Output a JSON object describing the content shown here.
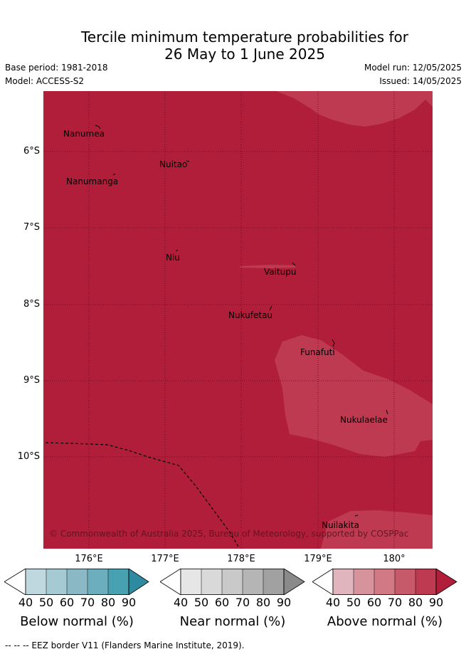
{
  "title": {
    "line1": "Tercile minimum temperature probabilities for",
    "line2": "26 May to 1 June 2025"
  },
  "meta": {
    "base_period": "Base period: 1981-2018",
    "model": "Model: ACCESS-S2",
    "model_run": "Model run: 12/05/2025",
    "issued": "Issued: 14/05/2025"
  },
  "map": {
    "lat_labels": [
      "6°S",
      "7°S",
      "8°S",
      "9°S",
      "10°S"
    ],
    "lon_labels": [
      "176°E",
      "177°E",
      "178°E",
      "179°E",
      "180°"
    ],
    "places": [
      "Nanumea",
      "Nuitao",
      "Nanumanga",
      "Niu",
      "Vaitupu",
      "Nukufetau",
      "Funafuti",
      "Nukulaelae",
      "Nuilakita"
    ],
    "copyright": "© Commonwealth of Australia 2025, Bureau of Meteorology, supported by COSPPac",
    "colors": {
      "base_red": "#b11e3a",
      "light_red": "#bd3a51",
      "grid": "#5a0a1a"
    }
  },
  "legend": {
    "ticks": [
      "40",
      "50",
      "60",
      "70",
      "80",
      "90"
    ],
    "below": {
      "title": "Below normal (%)",
      "colors": [
        "#ffffff",
        "#bfd8df",
        "#a5cad1",
        "#8ab9c5",
        "#6caebd",
        "#48a1b1",
        "#2e8b9f"
      ]
    },
    "near": {
      "title": "Near normal (%)",
      "colors": [
        "#ffffff",
        "#e6e6e6",
        "#d9d9d9",
        "#c9c9c9",
        "#b5b5b5",
        "#a1a1a1",
        "#8a8a8a"
      ]
    },
    "above": {
      "title": "Above normal (%)",
      "colors": [
        "#ffffff",
        "#e1b5bd",
        "#d7939c",
        "#d17984",
        "#c75a6a",
        "#bd3a51",
        "#b11e3a"
      ]
    }
  },
  "footer": "--  --  -- EEZ border V11 (Flanders Marine Institute, 2019)."
}
